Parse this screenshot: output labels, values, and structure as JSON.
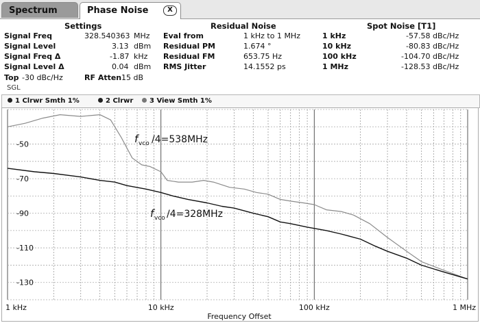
{
  "tabs": {
    "spectrum": "Spectrum",
    "phase_noise": "Phase Noise",
    "close_symbol": "X"
  },
  "settings": {
    "title": "Settings",
    "rows": [
      {
        "label": "Signal Freq",
        "value": "328.540363",
        "unit": "MHz"
      },
      {
        "label": "Signal Level",
        "value": "3.13",
        "unit": "dBm"
      },
      {
        "label": "Signal Freq Δ",
        "value": "-1.87",
        "unit": "kHz"
      },
      {
        "label": "Signal Level Δ",
        "value": "0.04",
        "unit": "dBm"
      }
    ],
    "top_label": "Top",
    "top_value": "-30 dBc/Hz",
    "rf_atten_label": "RF Atten",
    "rf_atten_value": "15 dB",
    "mode": "SGL"
  },
  "residual_noise": {
    "title": "Residual Noise",
    "rows": [
      {
        "label": "Eval from",
        "value": "1 kHz to 1 MHz"
      },
      {
        "label": "Residual PM",
        "value": "1.674 °"
      },
      {
        "label": "Residual FM",
        "value": "653.75 Hz"
      },
      {
        "label": "RMS Jitter",
        "value": "14.1552 ps"
      }
    ]
  },
  "spot_noise": {
    "title": "Spot Noise [T1]",
    "rows": [
      {
        "offset": "1 kHz",
        "value": "-57.58 dBc/Hz"
      },
      {
        "offset": "10 kHz",
        "value": "-80.83 dBc/Hz"
      },
      {
        "offset": "100 kHz",
        "value": "-104.70 dBc/Hz"
      },
      {
        "offset": "1 MHz",
        "value": "-128.53 dBc/Hz"
      }
    ]
  },
  "legend": [
    {
      "label": "1 Clrwr Smth 1%",
      "color": "#222222"
    },
    {
      "label": "2 Clrwr",
      "color": "#222222"
    },
    {
      "label": "3 View Smth 1%",
      "color": "#777777"
    }
  ],
  "annotations": {
    "upper_symbol": "f",
    "upper_sub": "vco",
    "upper_text": "/4=538MHz",
    "lower_symbol": "f",
    "lower_sub": "vco",
    "lower_text": "/4=328MHz"
  },
  "chart_data": {
    "type": "line",
    "xlabel": "Frequency Offset",
    "x_scale": "log",
    "xlim": [
      1000,
      1000000
    ],
    "ylim": [
      -140,
      -30
    ],
    "x_ticks": [
      {
        "value": 1000,
        "label": "1 kHz"
      },
      {
        "value": 10000,
        "label": "10 kHz"
      },
      {
        "value": 100000,
        "label": "100 kHz"
      },
      {
        "value": 1000000,
        "label": "1 MHz"
      }
    ],
    "y_ticks": [
      -50,
      -70,
      -90,
      -110,
      -130
    ],
    "grid": true,
    "series": [
      {
        "color": "#8a8a8a",
        "x": [
          1000,
          1300,
          1700,
          2200,
          3000,
          4000,
          4700,
          5500,
          6500,
          7500,
          8500,
          10000,
          11000,
          13000,
          16000,
          19000,
          22000,
          28000,
          35000,
          42000,
          50000,
          60000,
          70000,
          85000,
          100000,
          120000,
          150000,
          180000,
          230000,
          300000,
          400000,
          500000,
          700000,
          1000000
        ],
        "y": [
          -40,
          -38,
          -35,
          -33,
          -34,
          -33,
          -36,
          -46,
          -58,
          -62,
          -63,
          -66,
          -71,
          -72,
          -72,
          -71,
          -72,
          -75,
          -76,
          -78,
          -79,
          -82,
          -83,
          -84,
          -85,
          -88,
          -89,
          -91,
          -96,
          -104,
          -112,
          -118,
          -123,
          -128
        ]
      },
      {
        "color": "#111111",
        "x": [
          1000,
          1500,
          2000,
          3000,
          4000,
          5000,
          6000,
          8000,
          10000,
          12000,
          15000,
          20000,
          25000,
          30000,
          40000,
          50000,
          60000,
          70000,
          90000,
          120000,
          150000,
          200000,
          250000,
          300000,
          400000,
          500000,
          700000,
          1000000
        ],
        "y": [
          -64,
          -66,
          -67,
          -69,
          -71,
          -72,
          -74,
          -76,
          -78,
          -80,
          -82,
          -84,
          -86,
          -87,
          -90,
          -92,
          -95,
          -96,
          -98,
          -100,
          -102,
          -105,
          -109,
          -112,
          -116,
          -120,
          -124,
          -128
        ]
      }
    ]
  }
}
